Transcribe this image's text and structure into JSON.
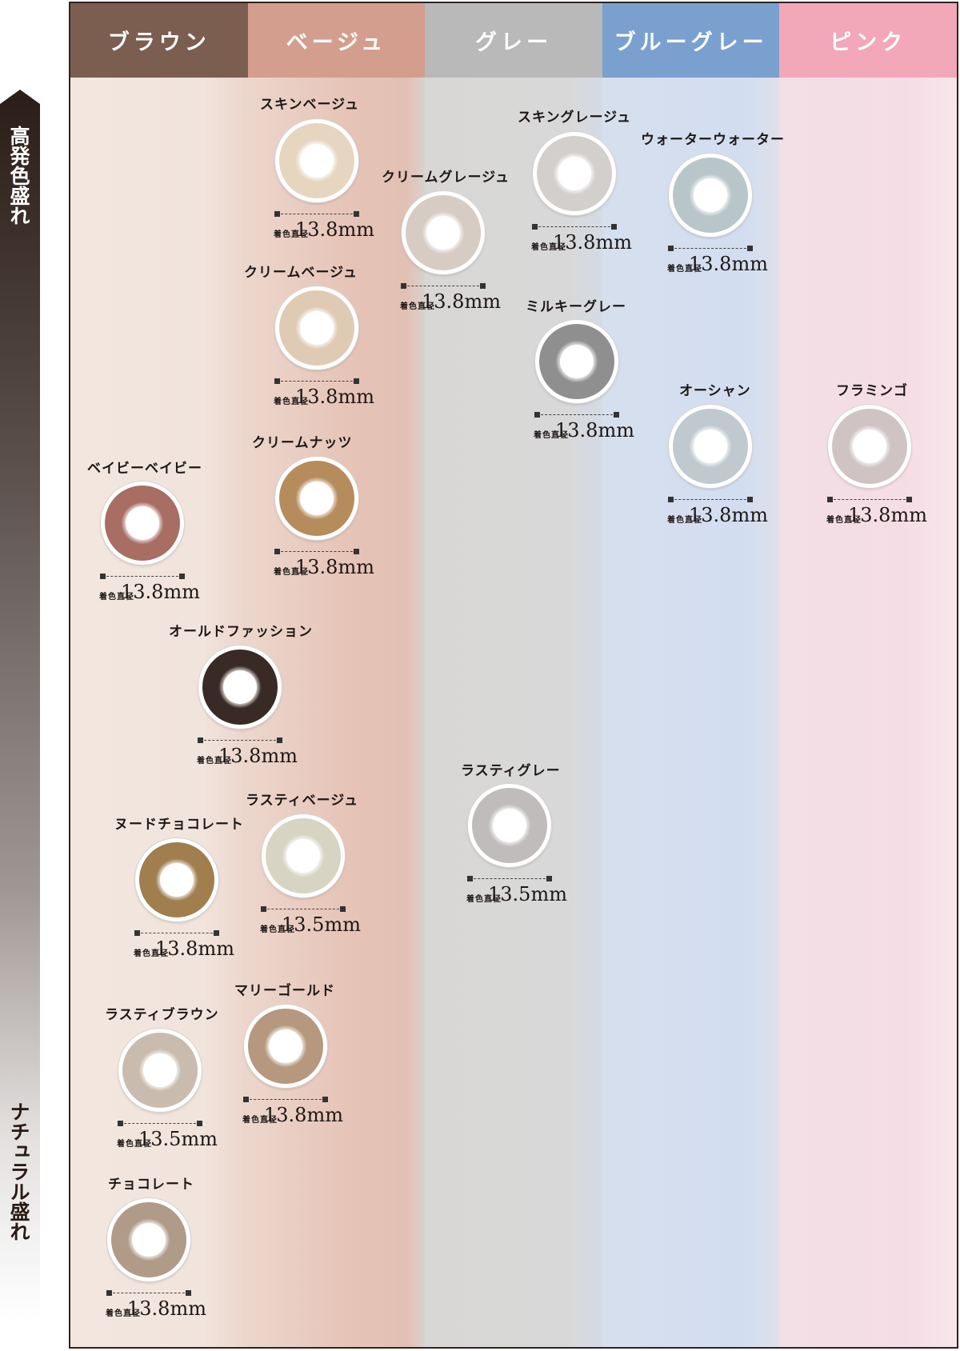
{
  "axis": {
    "top_label": "高発色盛れ",
    "bottom_label": "ナチュラル盛れ"
  },
  "columns": [
    {
      "label": "ブラウン",
      "color": "#7c5e51"
    },
    {
      "label": "ベージュ",
      "color": "#d49e8e"
    },
    {
      "label": "グレー",
      "color": "#b9b9b9"
    },
    {
      "label": "ブルーグレー",
      "color": "#7aa0d0"
    },
    {
      "label": "ピンク",
      "color": "#f2a8b8"
    }
  ],
  "dimension_label": "着色直径",
  "lenses": [
    {
      "name": "スキンベージュ",
      "size": "13.8mm",
      "iris": "#e6d6c0"
    },
    {
      "name": "クリームベージュ",
      "size": "13.8mm",
      "iris": "#dfcbb4"
    },
    {
      "name": "クリームナッツ",
      "size": "13.8mm",
      "iris": "#b78c5c"
    },
    {
      "name": "クリームグレージュ",
      "size": "13.8mm",
      "iris": "#d7ccc4"
    },
    {
      "name": "スキングレージュ",
      "size": "13.8mm",
      "iris": "#d2cfcd"
    },
    {
      "name": "ミルキーグレー",
      "size": "13.8mm",
      "iris": "#8f8f8f"
    },
    {
      "name": "ウォーターウォーター",
      "size": "13.8mm",
      "iris": "#b8c6ca"
    },
    {
      "name": "オーシャン",
      "size": "13.8mm",
      "iris": "#bfc9cf"
    },
    {
      "name": "フラミンゴ",
      "size": "13.8mm",
      "iris": "#cfc3c4"
    },
    {
      "name": "ベイビーベイビー",
      "size": "13.8mm",
      "iris": "#a86d63"
    },
    {
      "name": "オールドファッション",
      "size": "13.8mm",
      "iris": "#3a2a26"
    },
    {
      "name": "ヌードチョコレート",
      "size": "13.8mm",
      "iris": "#a07e4e"
    },
    {
      "name": "ラスティベージュ",
      "size": "13.5mm",
      "iris": "#d8d4c4"
    },
    {
      "name": "ラスティグレー",
      "size": "13.5mm",
      "iris": "#c0bcbc"
    },
    {
      "name": "ラスティブラウン",
      "size": "13.5mm",
      "iris": "#c9bcae"
    },
    {
      "name": "マリーゴールド",
      "size": "13.8mm",
      "iris": "#b5987e"
    },
    {
      "name": "チョコレート",
      "size": "13.8mm",
      "iris": "#b09a88"
    }
  ]
}
